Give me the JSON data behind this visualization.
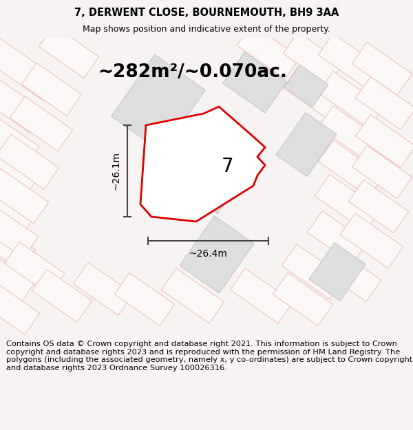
{
  "title": "7, DERWENT CLOSE, BOURNEMOUTH, BH9 3AA",
  "subtitle": "Map shows position and indicative extent of the property.",
  "area_label": "~282m²/~0.070ac.",
  "width_label": "~26.4m",
  "height_label": "~26.1m",
  "number_label": "7",
  "footer_text": "Contains OS data © Crown copyright and database right 2021. This information is subject to Crown copyright and database rights 2023 and is reproduced with the permission of HM Land Registry. The polygons (including the associated geometry, namely x, y co-ordinates) are subject to Crown copyright and database rights 2023 Ordnance Survey 100026316.",
  "bg_color": "#f7f3f3",
  "map_bg": "#ffffff",
  "plot_color": "#dd0000",
  "building_fill": "#dedede",
  "building_edge": "#c8c8c8",
  "road_outline": "#f0c0c0",
  "road_fill": "#fdf8f8",
  "title_fontsize": 10.5,
  "subtitle_fontsize": 9,
  "area_fontsize": 19,
  "dim_fontsize": 10,
  "number_fontsize": 20,
  "footer_fontsize": 8.2
}
